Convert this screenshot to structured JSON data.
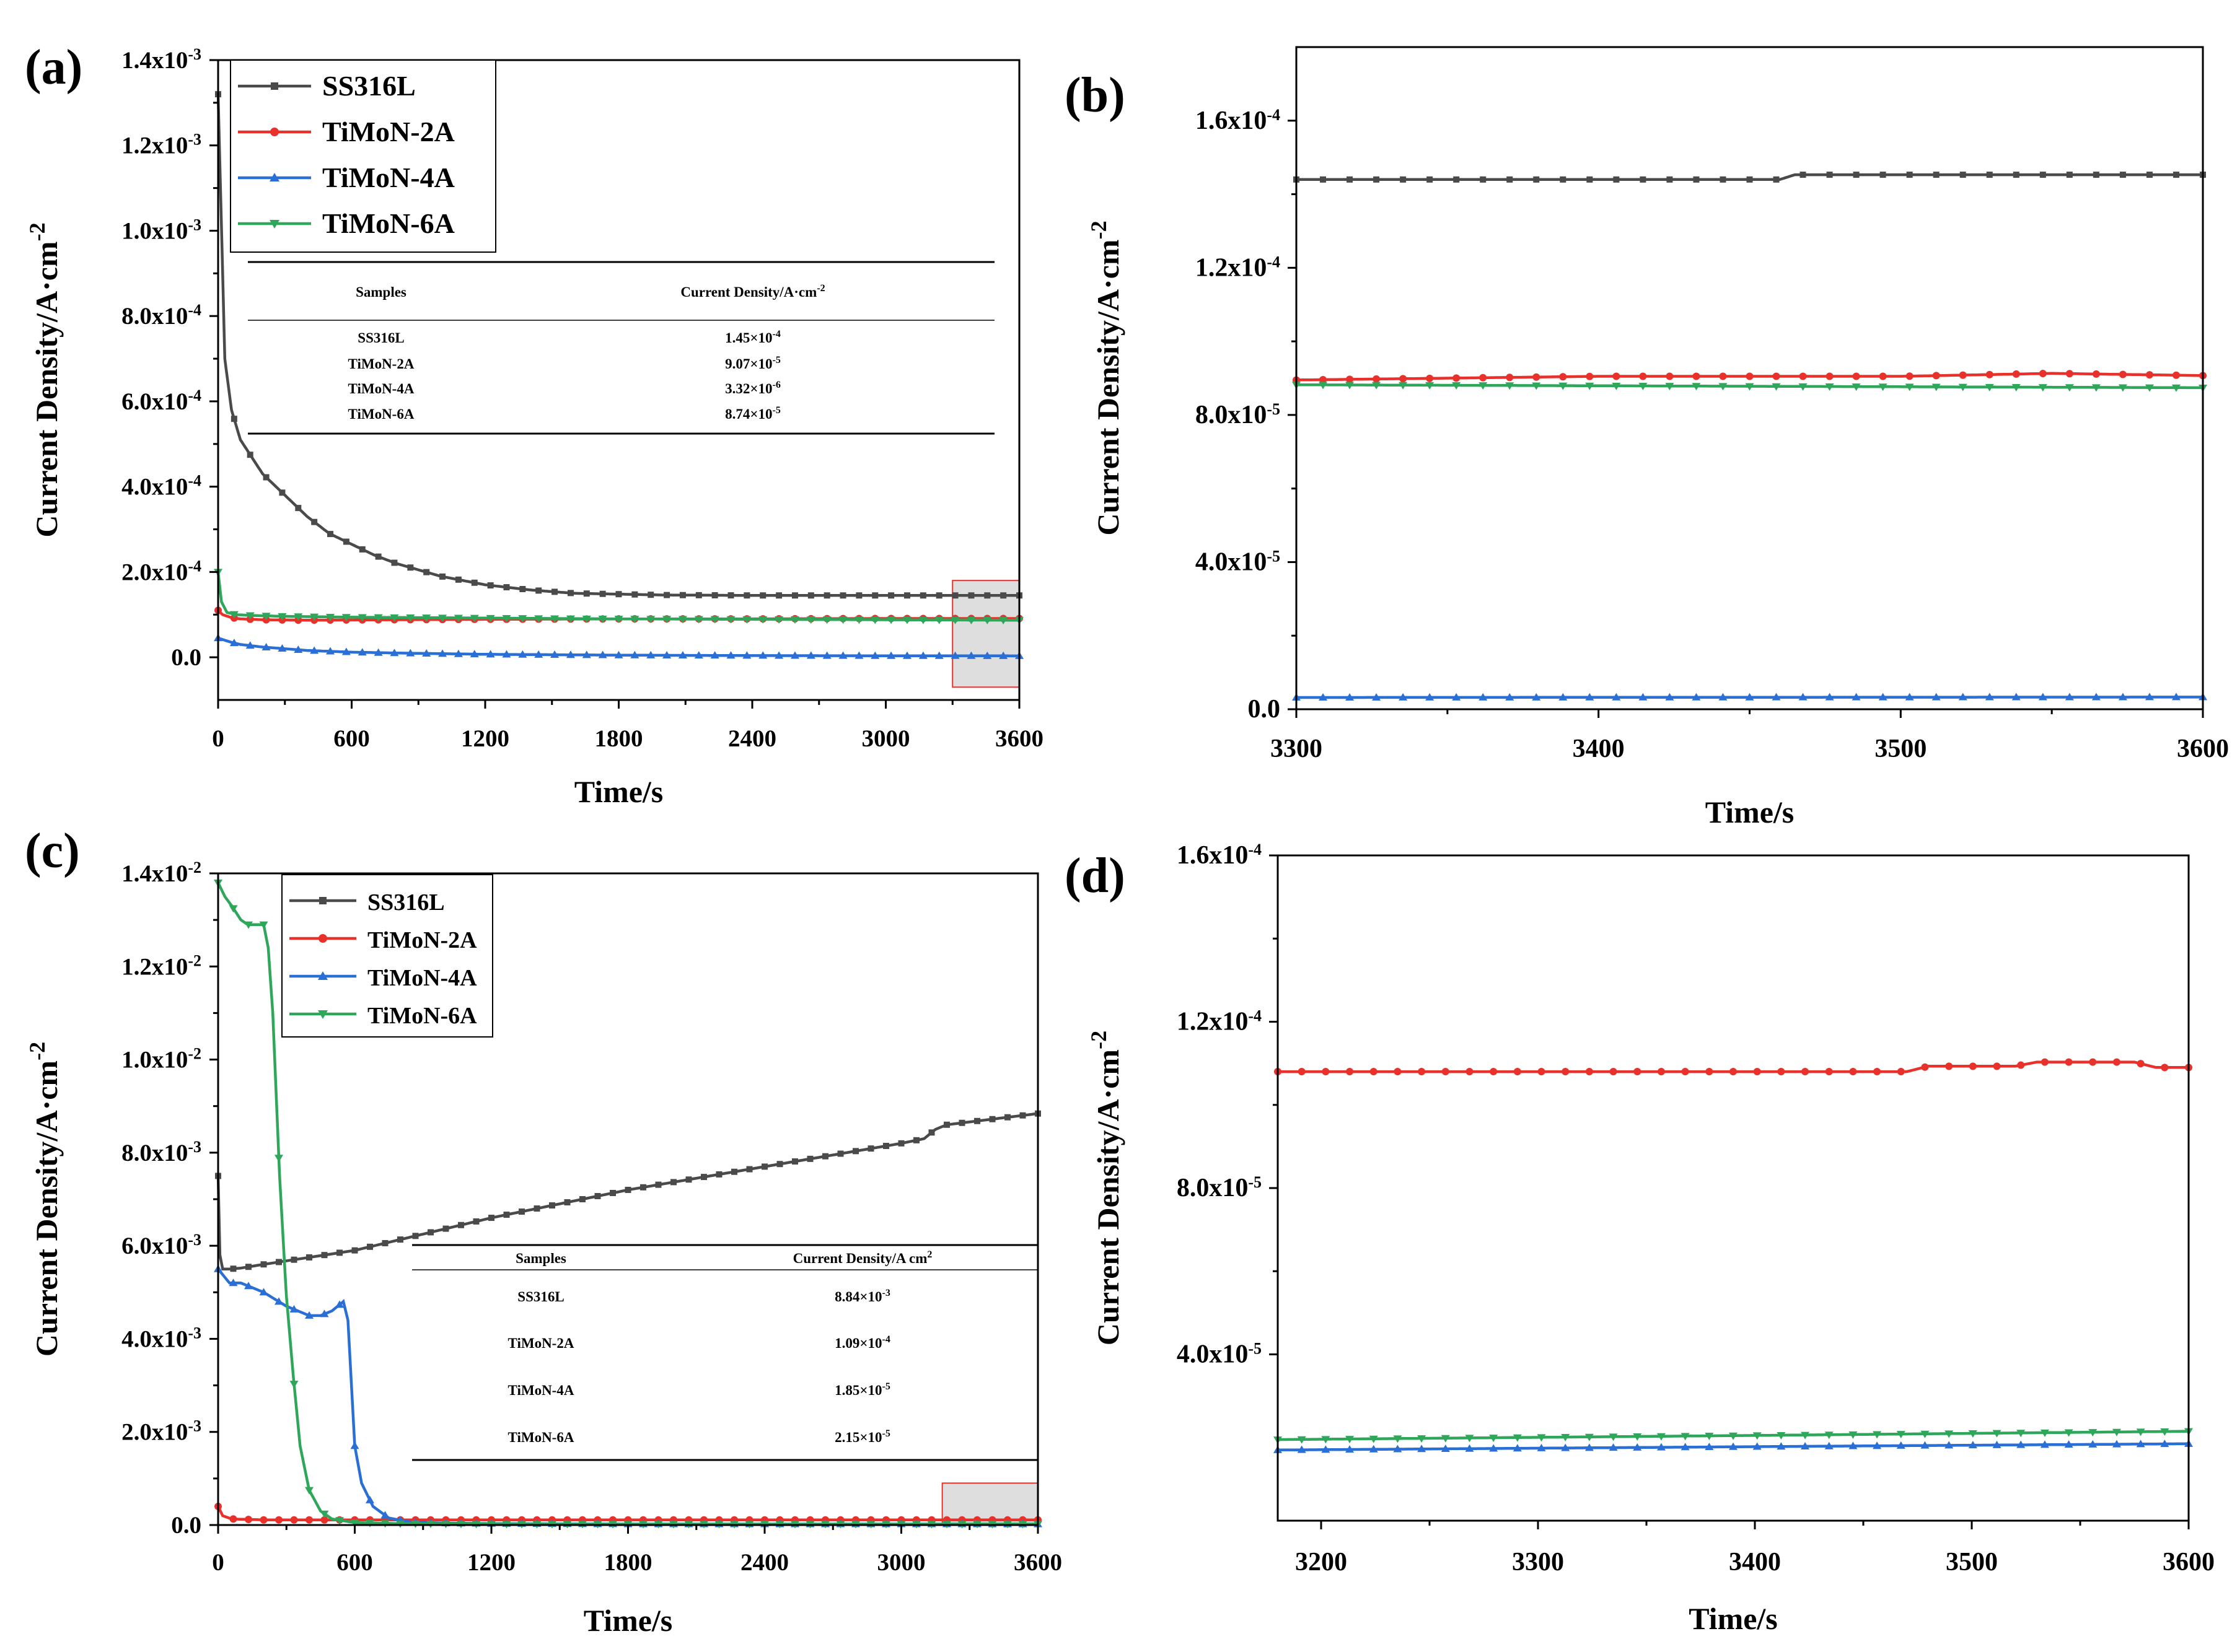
{
  "legend_entries": [
    "SS316L",
    "TiMoN-2A",
    "TiMoN-4A",
    "TiMoN-6A"
  ],
  "series_colors": {
    "SS316L": "#4a4a4a",
    "TiMoN-2A": "#e8312a",
    "TiMoN-4A": "#2a6fd6",
    "TiMoN-6A": "#2fa75a"
  },
  "zoom_box": {
    "fill": "#dedede",
    "stroke": "#e8312a"
  },
  "chart_data": [
    {
      "panel": "(a)",
      "type": "line",
      "xlabel": "Time/s",
      "ylabel": "Current Density/A·cm",
      "ylabel_sup": "-2",
      "xlim": [
        0,
        3600
      ],
      "ylim": [
        -0.0001,
        0.0014
      ],
      "x_ticks": [
        "0",
        "600",
        "1200",
        "1800",
        "2400",
        "3000",
        "3600"
      ],
      "y_ticks": [
        {
          "value": 0.0014,
          "m": "1.4x10",
          "e": "-3"
        },
        {
          "value": 0.0012,
          "m": "1.2x10",
          "e": "-3"
        },
        {
          "value": 0.001,
          "m": "1.0x10",
          "e": "-3"
        },
        {
          "value": 0.0008,
          "m": "8.0x10",
          "e": "-4"
        },
        {
          "value": 0.0006,
          "m": "6.0x10",
          "e": "-4"
        },
        {
          "value": 0.0004,
          "m": "4.0x10",
          "e": "-4"
        },
        {
          "value": 0.0002,
          "m": "2.0x10",
          "e": "-4"
        },
        {
          "value": 0,
          "m": "0.0",
          "e": ""
        }
      ],
      "zoom_region": {
        "x": [
          3300,
          3600
        ],
        "y": [
          -7e-05,
          0.00018
        ]
      },
      "table": {
        "headers": [
          "Samples",
          "Current Density/A·cm"
        ],
        "header_sup": "-2",
        "rows": [
          {
            "sample": "SS316L",
            "m": "1.45×10",
            "e": "-4"
          },
          {
            "sample": "TiMoN-2A",
            "m": "9.07×10",
            "e": "-5"
          },
          {
            "sample": "TiMoN-4A",
            "m": "3.32×10",
            "e": "-6"
          },
          {
            "sample": "TiMoN-6A",
            "m": "8.74×10",
            "e": "-5"
          }
        ]
      },
      "series": [
        {
          "name": "SS316L",
          "x": [
            0,
            30,
            60,
            100,
            200,
            300,
            400,
            500,
            600,
            700,
            800,
            900,
            1000,
            1200,
            1400,
            1600,
            1800,
            2000,
            2400,
            2800,
            3200,
            3600
          ],
          "y": [
            0.00132,
            0.0007,
            0.00058,
            0.00051,
            0.00043,
            0.00038,
            0.00033,
            0.00029,
            0.000265,
            0.00024,
            0.00022,
            0.000205,
            0.00019,
            0.00017,
            0.000158,
            0.00015,
            0.000148,
            0.000146,
            0.000145,
            0.000145,
            0.000145,
            0.000145
          ]
        },
        {
          "name": "TiMoN-2A",
          "x": [
            0,
            20,
            60,
            100,
            200,
            400,
            800,
            1200,
            1800,
            2400,
            3000,
            3600
          ],
          "y": [
            0.00011,
            0.0001,
            9.3e-05,
            9e-05,
            8.8e-05,
            8.7e-05,
            8.8e-05,
            8.9e-05,
            9e-05,
            9e-05,
            9.1e-05,
            9.1e-05
          ]
        },
        {
          "name": "TiMoN-4A",
          "x": [
            0,
            30,
            60,
            100,
            200,
            300,
            400,
            500,
            600,
            800,
            1000,
            1200,
            1500,
            1800,
            2400,
            3000,
            3600
          ],
          "y": [
            4.5e-05,
            4e-05,
            3.5e-05,
            3e-05,
            2.4e-05,
            2e-05,
            1.6e-05,
            1.4e-05,
            1.2e-05,
            1e-05,
            8.5e-06,
            7e-06,
            6e-06,
            5e-06,
            4e-06,
            3.5e-06,
            3.3e-06
          ]
        },
        {
          "name": "TiMoN-6A",
          "x": [
            0,
            15,
            40,
            80,
            150,
            300,
            600,
            1200,
            1800,
            2400,
            3000,
            3600
          ],
          "y": [
            0.0002,
            0.00013,
            0.000105,
            0.0001,
            9.8e-05,
            9.6e-05,
            9.4e-05,
            9.2e-05,
            9e-05,
            8.9e-05,
            8.8e-05,
            8.7e-05
          ]
        }
      ]
    },
    {
      "panel": "(b)",
      "type": "line",
      "xlabel": "Time/s",
      "ylabel": "Current Density/A·cm",
      "ylabel_sup": "-2",
      "xlim": [
        3300,
        3600
      ],
      "ylim": [
        0,
        0.00018
      ],
      "x_ticks": [
        "3300",
        "3400",
        "3500",
        "3600"
      ],
      "y_ticks": [
        {
          "value": 0.00016,
          "m": "1.6x10",
          "e": "-4"
        },
        {
          "value": 0.00012,
          "m": "1.2x10",
          "e": "-4"
        },
        {
          "value": 8e-05,
          "m": "8.0x10",
          "e": "-5"
        },
        {
          "value": 4e-05,
          "m": "4.0x10",
          "e": "-5"
        },
        {
          "value": 0,
          "m": "0.0",
          "e": ""
        }
      ],
      "series": [
        {
          "name": "SS316L",
          "x": [
            3300,
            3460,
            3465,
            3600
          ],
          "y": [
            0.000144,
            0.000144,
            0.0001453,
            0.0001453
          ]
        },
        {
          "name": "TiMoN-2A",
          "x": [
            3300,
            3400,
            3500,
            3550,
            3600
          ],
          "y": [
            8.95e-05,
            9.05e-05,
            9.05e-05,
            9.13e-05,
            9.07e-05
          ]
        },
        {
          "name": "TiMoN-4A",
          "x": [
            3300,
            3600
          ],
          "y": [
            3.2e-06,
            3.3e-06
          ]
        },
        {
          "name": "TiMoN-6A",
          "x": [
            3300,
            3450,
            3600
          ],
          "y": [
            8.82e-05,
            8.78e-05,
            8.74e-05
          ]
        }
      ]
    },
    {
      "panel": "(c)",
      "type": "line",
      "xlabel": "Time/s",
      "ylabel": "Current Density/A·cm",
      "ylabel_sup": "-2",
      "xlim": [
        0,
        3600
      ],
      "ylim": [
        0,
        0.014
      ],
      "x_ticks": [
        "0",
        "600",
        "1200",
        "1800",
        "2400",
        "3000",
        "3600"
      ],
      "y_ticks": [
        {
          "value": 0.014,
          "m": "1.4x10",
          "e": "-2"
        },
        {
          "value": 0.012,
          "m": "1.2x10",
          "e": "-2"
        },
        {
          "value": 0.01,
          "m": "1.0x10",
          "e": "-2"
        },
        {
          "value": 0.008,
          "m": "8.0x10",
          "e": "-3"
        },
        {
          "value": 0.006,
          "m": "6.0x10",
          "e": "-3"
        },
        {
          "value": 0.004,
          "m": "4.0x10",
          "e": "-3"
        },
        {
          "value": 0.002,
          "m": "2.0x10",
          "e": "-3"
        },
        {
          "value": 0,
          "m": "0.0",
          "e": ""
        }
      ],
      "zoom_region": {
        "x": [
          3180,
          3600
        ],
        "y": [
          0,
          0.0009
        ]
      },
      "table": {
        "headers": [
          "Samples",
          "Current Density/A cm"
        ],
        "header_sup": "2",
        "rows": [
          {
            "sample": "SS316L",
            "m": "8.84×10",
            "e": "-3"
          },
          {
            "sample": "TiMoN-2A",
            "m": "1.09×10",
            "e": "-4"
          },
          {
            "sample": "TiMoN-4A",
            "m": "1.85×10",
            "e": "-5"
          },
          {
            "sample": "TiMoN-6A",
            "m": "2.15×10",
            "e": "-5"
          }
        ]
      },
      "series": [
        {
          "name": "SS316L",
          "x": [
            0,
            8,
            20,
            50,
            100,
            200,
            600,
            1200,
            1800,
            2400,
            3000,
            3100,
            3150,
            3200,
            3600
          ],
          "y": [
            0.0075,
            0.0058,
            0.0055,
            0.0055,
            0.00552,
            0.0056,
            0.0059,
            0.0066,
            0.0072,
            0.0077,
            0.0082,
            0.0083,
            0.0085,
            0.0086,
            0.00884
          ]
        },
        {
          "name": "TiMoN-2A",
          "x": [
            0,
            20,
            60,
            200,
            600,
            1200,
            1800,
            2400,
            3000,
            3600
          ],
          "y": [
            0.0004,
            0.0002,
            0.00013,
            0.00011,
            0.00011,
            0.00011,
            0.00011,
            0.00011,
            0.00011,
            0.00011
          ]
        },
        {
          "name": "TiMoN-4A",
          "x": [
            0,
            50,
            100,
            200,
            300,
            400,
            450,
            500,
            550,
            570,
            600,
            630,
            680,
            750,
            850,
            1000,
            1200,
            1800,
            2400,
            3000,
            3600
          ],
          "y": [
            0.0055,
            0.0052,
            0.0052,
            0.005,
            0.0047,
            0.0045,
            0.0045,
            0.0046,
            0.0048,
            0.0044,
            0.0017,
            0.0009,
            0.0004,
            0.00015,
            6e-05,
            4e-05,
            3e-05,
            2e-05,
            2e-05,
            2e-05,
            1.85e-05
          ]
        },
        {
          "name": "TiMoN-6A",
          "x": [
            0,
            30,
            60,
            100,
            130,
            160,
            200,
            220,
            240,
            270,
            300,
            330,
            360,
            400,
            450,
            500,
            600,
            800,
            1200,
            1800,
            2400,
            3000,
            3600
          ],
          "y": [
            0.0138,
            0.0135,
            0.0133,
            0.013,
            0.0129,
            0.0129,
            0.0129,
            0.0124,
            0.011,
            0.0075,
            0.0049,
            0.0032,
            0.0017,
            0.00075,
            0.0003,
            0.00013,
            5e-05,
            3e-05,
            2e-05,
            2e-05,
            2e-05,
            2e-05,
            2.15e-05
          ]
        }
      ]
    },
    {
      "panel": "(d)",
      "type": "line",
      "xlabel": "Time/s",
      "ylabel": "Current Density/A·cm",
      "ylabel_sup": "-2",
      "xlim": [
        3180,
        3600
      ],
      "ylim": [
        0,
        0.00016
      ],
      "x_ticks": [
        "3200",
        "3300",
        "3400",
        "3500",
        "3600"
      ],
      "y_ticks": [
        {
          "value": 0.00016,
          "m": "1.6x10",
          "e": "-4"
        },
        {
          "value": 0.00012,
          "m": "1.2x10",
          "e": "-4"
        },
        {
          "value": 8e-05,
          "m": "8.0x10",
          "e": "-5"
        },
        {
          "value": 4e-05,
          "m": "4.0x10",
          "e": "-5"
        }
      ],
      "series": [
        {
          "name": "TiMoN-2A",
          "x": [
            3180,
            3470,
            3480,
            3520,
            3530,
            3575,
            3585,
            3600
          ],
          "y": [
            0.000108,
            0.000108,
            0.0001093,
            0.0001093,
            0.0001103,
            0.0001103,
            0.000109,
            0.000109
          ]
        },
        {
          "name": "TiMoN-4A",
          "x": [
            3180,
            3400,
            3600
          ],
          "y": [
            1.7e-05,
            1.78e-05,
            1.85e-05
          ]
        },
        {
          "name": "TiMoN-6A",
          "x": [
            3180,
            3400,
            3600
          ],
          "y": [
            1.95e-05,
            2.05e-05,
            2.15e-05
          ]
        }
      ]
    }
  ]
}
